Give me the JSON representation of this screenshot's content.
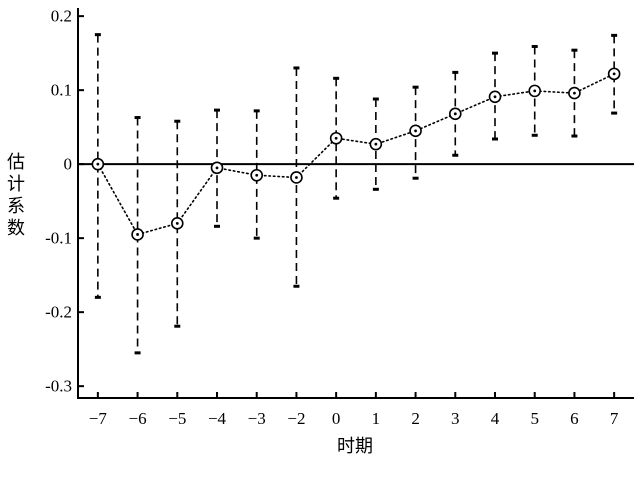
{
  "chart_data": {
    "type": "line",
    "categories": [
      "−7",
      "−6",
      "−5",
      "−4",
      "−3",
      "−2",
      "0",
      "1",
      "2",
      "3",
      "4",
      "5",
      "6",
      "7"
    ],
    "values": [
      0.0,
      -0.095,
      -0.08,
      -0.005,
      -0.015,
      -0.018,
      0.035,
      0.027,
      0.045,
      0.068,
      0.091,
      0.099,
      0.096,
      0.122
    ],
    "ci_upper": [
      0.175,
      0.063,
      0.058,
      0.073,
      0.072,
      0.13,
      0.116,
      0.088,
      0.104,
      0.124,
      0.15,
      0.159,
      0.154,
      0.174
    ],
    "ci_lower": [
      -0.18,
      -0.255,
      -0.219,
      -0.084,
      -0.1,
      -0.165,
      -0.046,
      -0.034,
      -0.019,
      0.012,
      0.034,
      0.039,
      0.038,
      0.069
    ],
    "xlabel": "时期",
    "ylabel": "估计系数",
    "ylim": [
      -0.316,
      0.211
    ],
    "yticks": [
      0.2,
      0.1,
      0,
      -0.1,
      -0.2,
      -0.3
    ],
    "ytick_labels": [
      "0.2",
      "0.1",
      "0",
      "-0.1",
      "-0.2",
      "-0.3"
    ],
    "reference_line_y": 0,
    "grid": false,
    "color": "#000000"
  }
}
